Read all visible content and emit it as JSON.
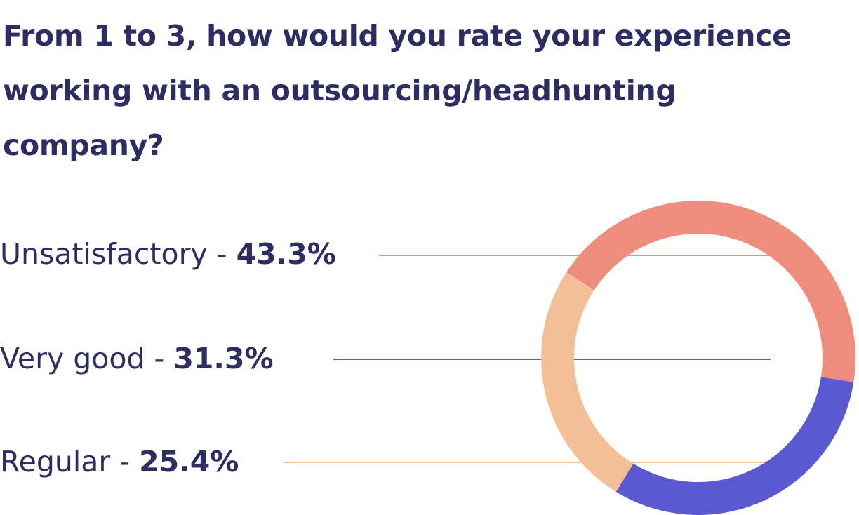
{
  "chart_data": {
    "type": "pie",
    "title": "From 1 to 3, how would you rate your experience working with an outsourcing/headhunting company?",
    "categories": [
      "Unsatisfactory",
      "Very good",
      "Regular"
    ],
    "values": [
      43.3,
      31.3,
      25.4
    ],
    "value_labels": [
      "43.3%",
      "31.3%",
      "25.4%"
    ],
    "separator": " - ",
    "colors": [
      "#ee8c7e",
      "#5b59d1",
      "#f4bf97"
    ],
    "donut": true,
    "legend_placement": "left"
  }
}
